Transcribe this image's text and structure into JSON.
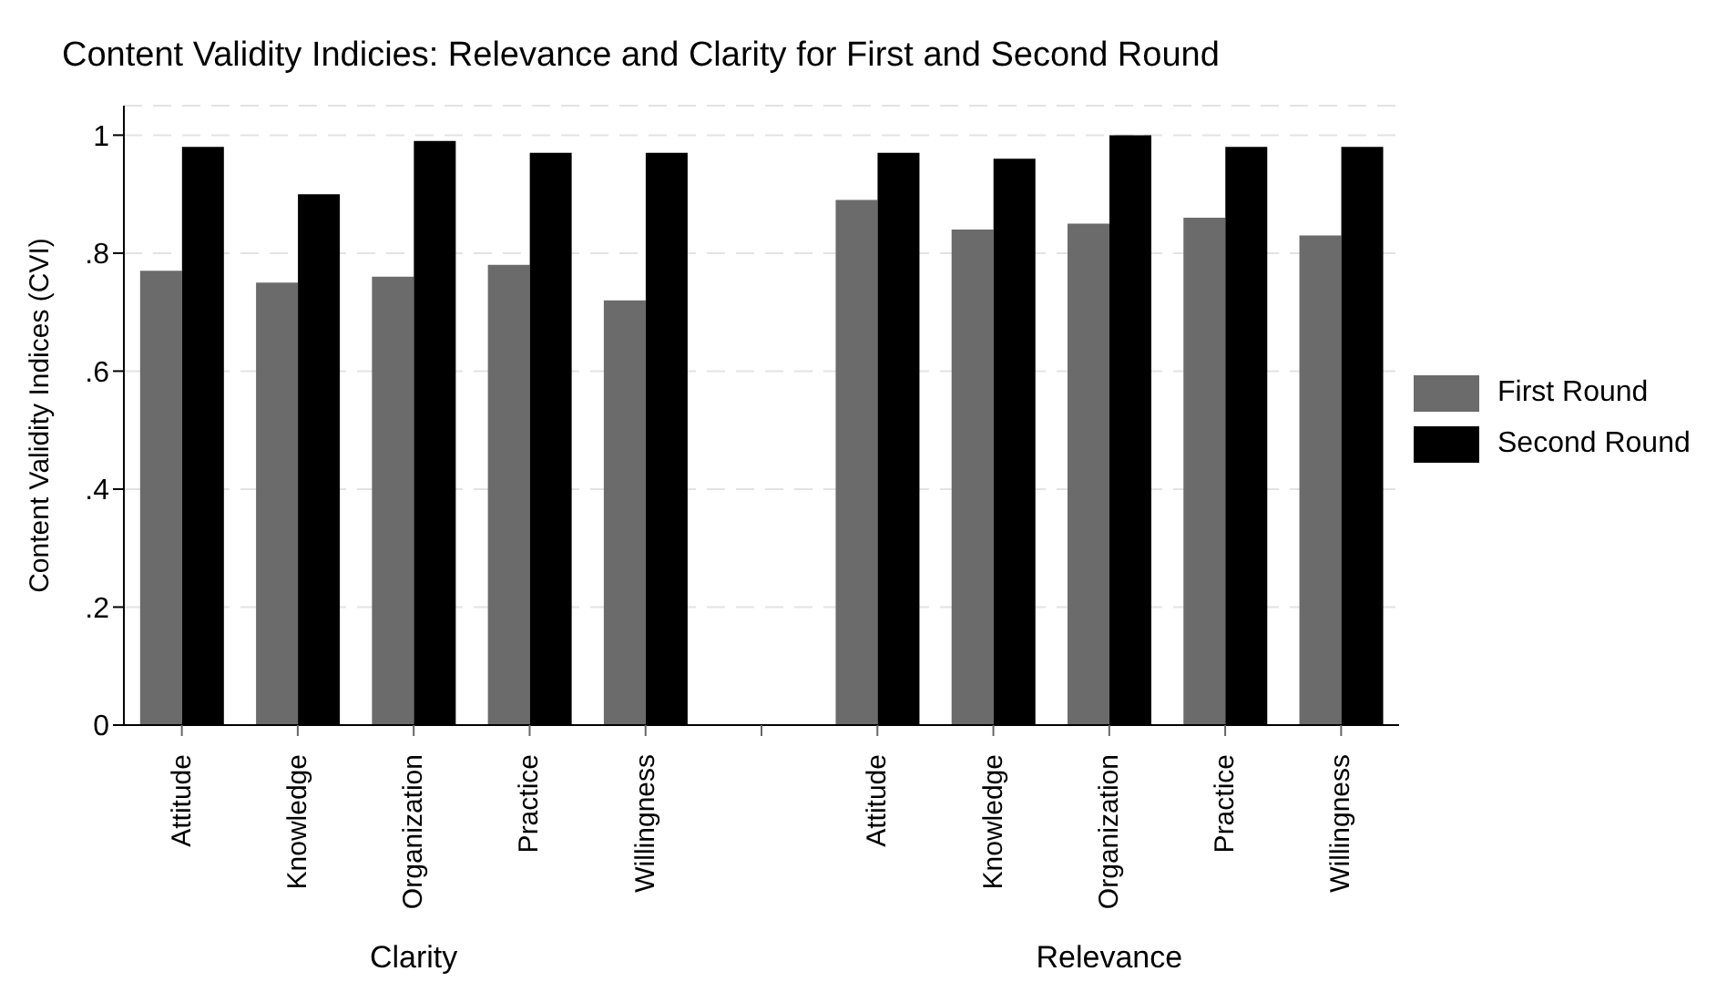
{
  "chart_data": {
    "type": "bar",
    "title": "Content Validity Indicies: Relevance and Clarity for First and Second Round",
    "ylabel": "Content Validity Indices (CVI)",
    "categories": [
      "Attitude",
      "Knowledge",
      "Organization",
      "Practice",
      "Willingness",
      null,
      "Attitude",
      "Knowledge",
      "Organization",
      "Practice",
      "Willingness"
    ],
    "series": [
      {
        "name": "First Round",
        "color": "#6b6b6b",
        "values": [
          0.77,
          0.75,
          0.76,
          0.78,
          0.72,
          null,
          0.89,
          0.84,
          0.85,
          0.86,
          0.83
        ]
      },
      {
        "name": "Second Round",
        "color": "#000000",
        "values": [
          0.98,
          0.9,
          0.99,
          0.97,
          0.97,
          null,
          0.97,
          0.96,
          1.0,
          0.98,
          0.98
        ]
      }
    ],
    "annotations": [
      "Clarity",
      "Relevance"
    ],
    "ylim": [
      0,
      1.05
    ],
    "yticks": [
      0,
      {
        "value": 0.2,
        "label": ".2"
      },
      {
        "value": 0.4,
        "label": ".4"
      },
      {
        "value": 0.6,
        "label": ".6"
      },
      {
        "value": 0.8,
        "label": ".8"
      },
      1
    ],
    "grid": "y",
    "legend": "right"
  }
}
